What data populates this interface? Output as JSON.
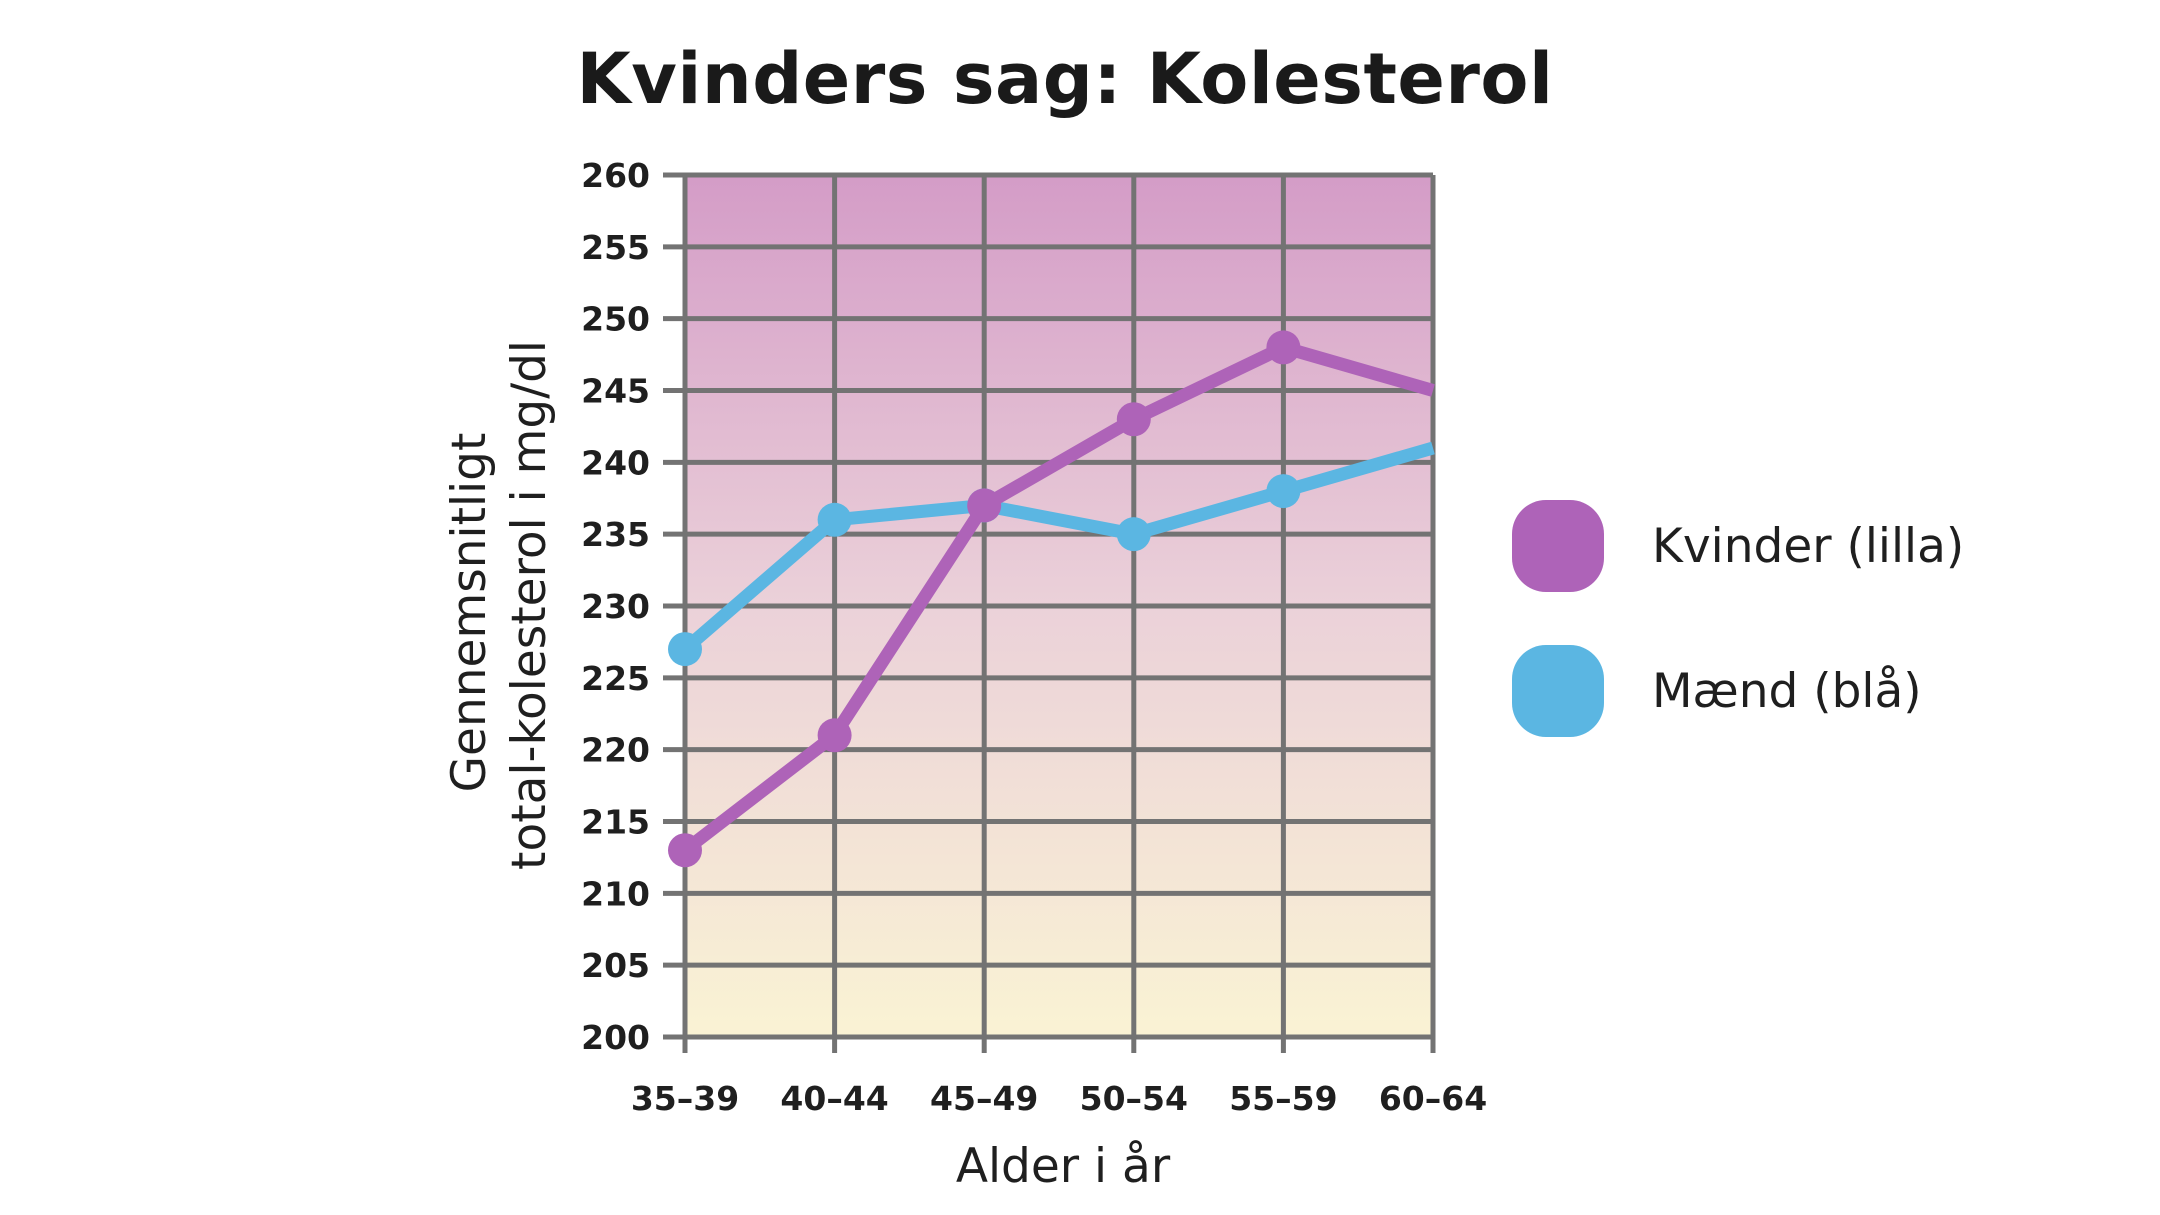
{
  "colors": {
    "kvinder": "#AE63B8",
    "maend": "#5BB6E2",
    "grid": "#737373",
    "bg_top": "#D49CC7",
    "bg_mid": "#EBD1D9",
    "bg_bottom": "#FAF3D4"
  },
  "chart_data": {
    "type": "line",
    "title": "Kvinders sag: Kolesterol",
    "xlabel": "Alder i år",
    "ylabel_lines": [
      "Gennemsnitligt",
      "total-kolesterol i mg/dl"
    ],
    "categories": [
      "35–39",
      "40–44",
      "45–49",
      "50–54",
      "55–59",
      "60–64"
    ],
    "ylim": [
      200,
      260
    ],
    "yticks": [
      200,
      205,
      210,
      215,
      220,
      225,
      230,
      235,
      240,
      245,
      250,
      255,
      260
    ],
    "grid": true,
    "legend_position": "right",
    "series": [
      {
        "name": "Kvinder (lilla)",
        "color": "#AE63B8",
        "values": [
          213,
          221,
          237,
          243,
          248,
          245
        ],
        "markers": [
          true,
          true,
          true,
          true,
          true,
          false
        ]
      },
      {
        "name": "Mænd (blå)",
        "color": "#5BB6E2",
        "values": [
          227,
          236,
          237,
          235,
          238,
          241
        ],
        "markers": [
          true,
          true,
          true,
          true,
          true,
          false
        ]
      }
    ]
  }
}
